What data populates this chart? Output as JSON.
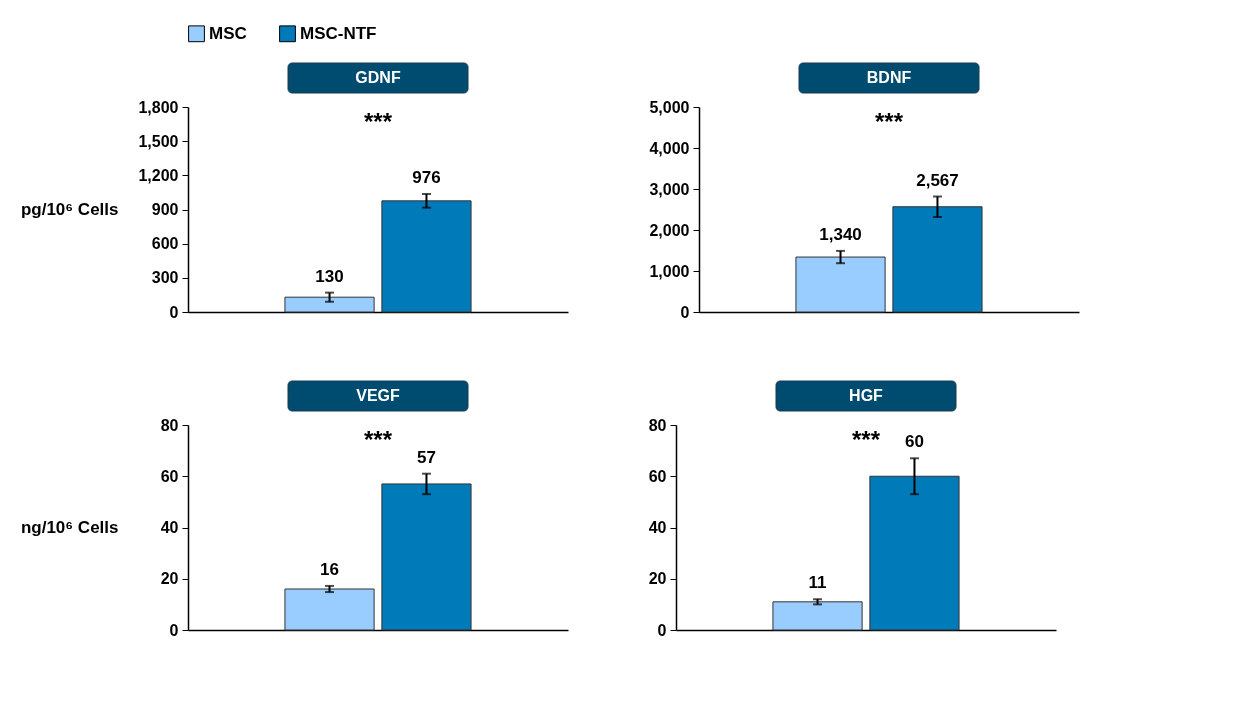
{
  "chart_data": [
    {
      "type": "bar",
      "title": "GDNF",
      "ylabel": "pg/10⁶ Cells",
      "categories": [
        null
      ],
      "legend": "top",
      "annotations": [
        "***"
      ],
      "series": [
        {
          "name": "MSC",
          "color": "#99ccff",
          "values": [
            130
          ],
          "errors": [
            40
          ],
          "value_labels": [
            "130"
          ]
        },
        {
          "name": "MSC-NTF",
          "color": "#007ab8",
          "values": [
            976
          ],
          "errors": [
            60
          ],
          "value_labels": [
            "976"
          ]
        }
      ],
      "ylim": [
        0,
        1800
      ],
      "yticks": [
        0,
        300,
        600,
        900,
        {
          "value": 1200,
          "label": "1,200"
        },
        {
          "value": 1500,
          "label": "1,500"
        },
        {
          "value": 1800,
          "label": "1,800"
        }
      ],
      "grid": false
    },
    {
      "type": "bar",
      "title": "BDNF",
      "categories": [
        null
      ],
      "legend": "top",
      "annotations": [
        "***"
      ],
      "series": [
        {
          "name": "MSC",
          "color": "#99ccff",
          "values": [
            1340
          ],
          "errors": [
            150
          ],
          "value_labels": [
            "1,340"
          ]
        },
        {
          "name": "MSC-NTF",
          "color": "#007ab8",
          "values": [
            2567
          ],
          "errors": [
            250
          ],
          "value_labels": [
            "2,567"
          ]
        }
      ],
      "ylim": [
        0,
        5000
      ],
      "yticks": [
        0,
        {
          "value": 1000,
          "label": "1,000"
        },
        {
          "value": 2000,
          "label": "2,000"
        },
        {
          "value": 3000,
          "label": "3,000"
        },
        {
          "value": 4000,
          "label": "4,000"
        },
        {
          "value": 5000,
          "label": "5,000"
        }
      ],
      "grid": false
    },
    {
      "type": "bar",
      "title": "VEGF",
      "ylabel": "ng/10⁶ Cells",
      "categories": [
        null
      ],
      "legend": "top",
      "annotations": [
        "***"
      ],
      "series": [
        {
          "name": "MSC",
          "color": "#99ccff",
          "values": [
            16
          ],
          "errors": [
            1.2
          ],
          "value_labels": [
            "16"
          ]
        },
        {
          "name": "MSC-NTF",
          "color": "#007ab8",
          "values": [
            57
          ],
          "errors": [
            4
          ],
          "value_labels": [
            "57"
          ]
        }
      ],
      "ylim": [
        0,
        80
      ],
      "yticks": [
        0,
        20,
        40,
        60,
        80
      ],
      "grid": false
    },
    {
      "type": "bar",
      "title": "HGF",
      "categories": [
        null
      ],
      "legend": "top",
      "annotations": [
        "***"
      ],
      "series": [
        {
          "name": "MSC",
          "color": "#99ccff",
          "values": [
            11
          ],
          "errors": [
            1
          ],
          "value_labels": [
            "11"
          ]
        },
        {
          "name": "MSC-NTF",
          "color": "#007ab8",
          "values": [
            60
          ],
          "errors": [
            7
          ],
          "value_labels": [
            "60"
          ]
        }
      ],
      "ylim": [
        0,
        80
      ],
      "yticks": [
        0,
        20,
        40,
        60,
        80
      ],
      "grid": false
    }
  ]
}
